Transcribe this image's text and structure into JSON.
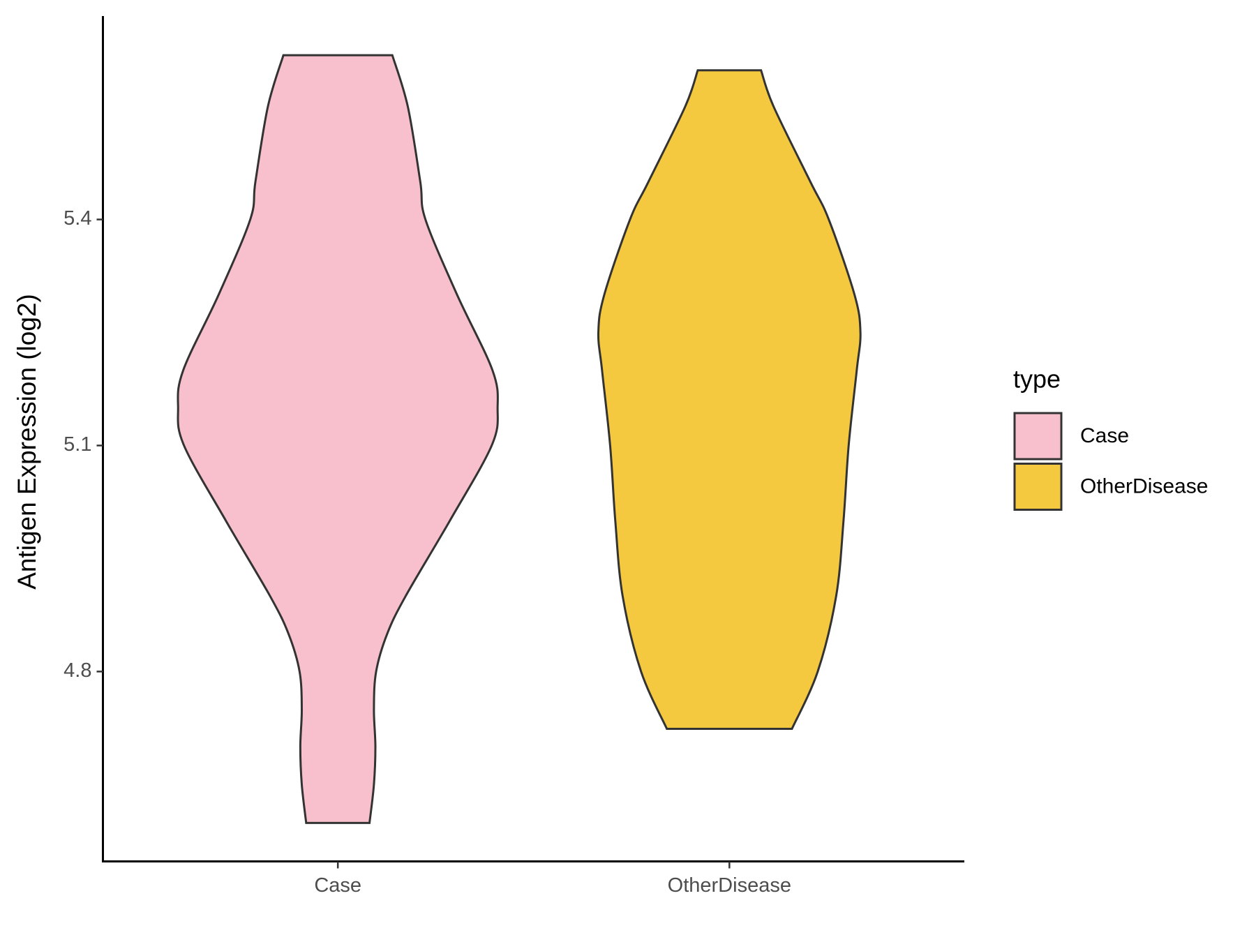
{
  "chart_data": {
    "type": "violin",
    "y_label": "Antigen Expression (log2)",
    "categories": [
      "Case",
      "OtherDisease"
    ],
    "ylim": [
      4.548,
      5.67
    ],
    "yticks": [
      4.8,
      5.1,
      5.4
    ],
    "legend_title": "type",
    "legend": "right",
    "series": [
      {
        "name": "Case",
        "color": "#F7C0CC",
        "y": [
          5.618,
          5.55,
          5.45,
          5.4,
          5.3,
          5.2,
          5.15,
          5.1,
          5.0,
          4.9,
          4.85,
          4.8,
          4.75,
          4.7,
          4.65,
          4.599
        ],
        "density": [
          74,
          95,
          112,
          119,
          162,
          210,
          217,
          209,
          152,
          92,
          67,
          52,
          49,
          51,
          49,
          43
        ]
      },
      {
        "name": "OtherDisease",
        "color": "#F5C93F",
        "y": [
          5.598,
          5.55,
          5.45,
          5.4,
          5.3,
          5.25,
          5.2,
          5.1,
          5.0,
          4.9,
          4.8,
          4.724
        ],
        "density": [
          43,
          60,
          110,
          135,
          170,
          178,
          173,
          162,
          155,
          145,
          120,
          85
        ]
      }
    ]
  }
}
